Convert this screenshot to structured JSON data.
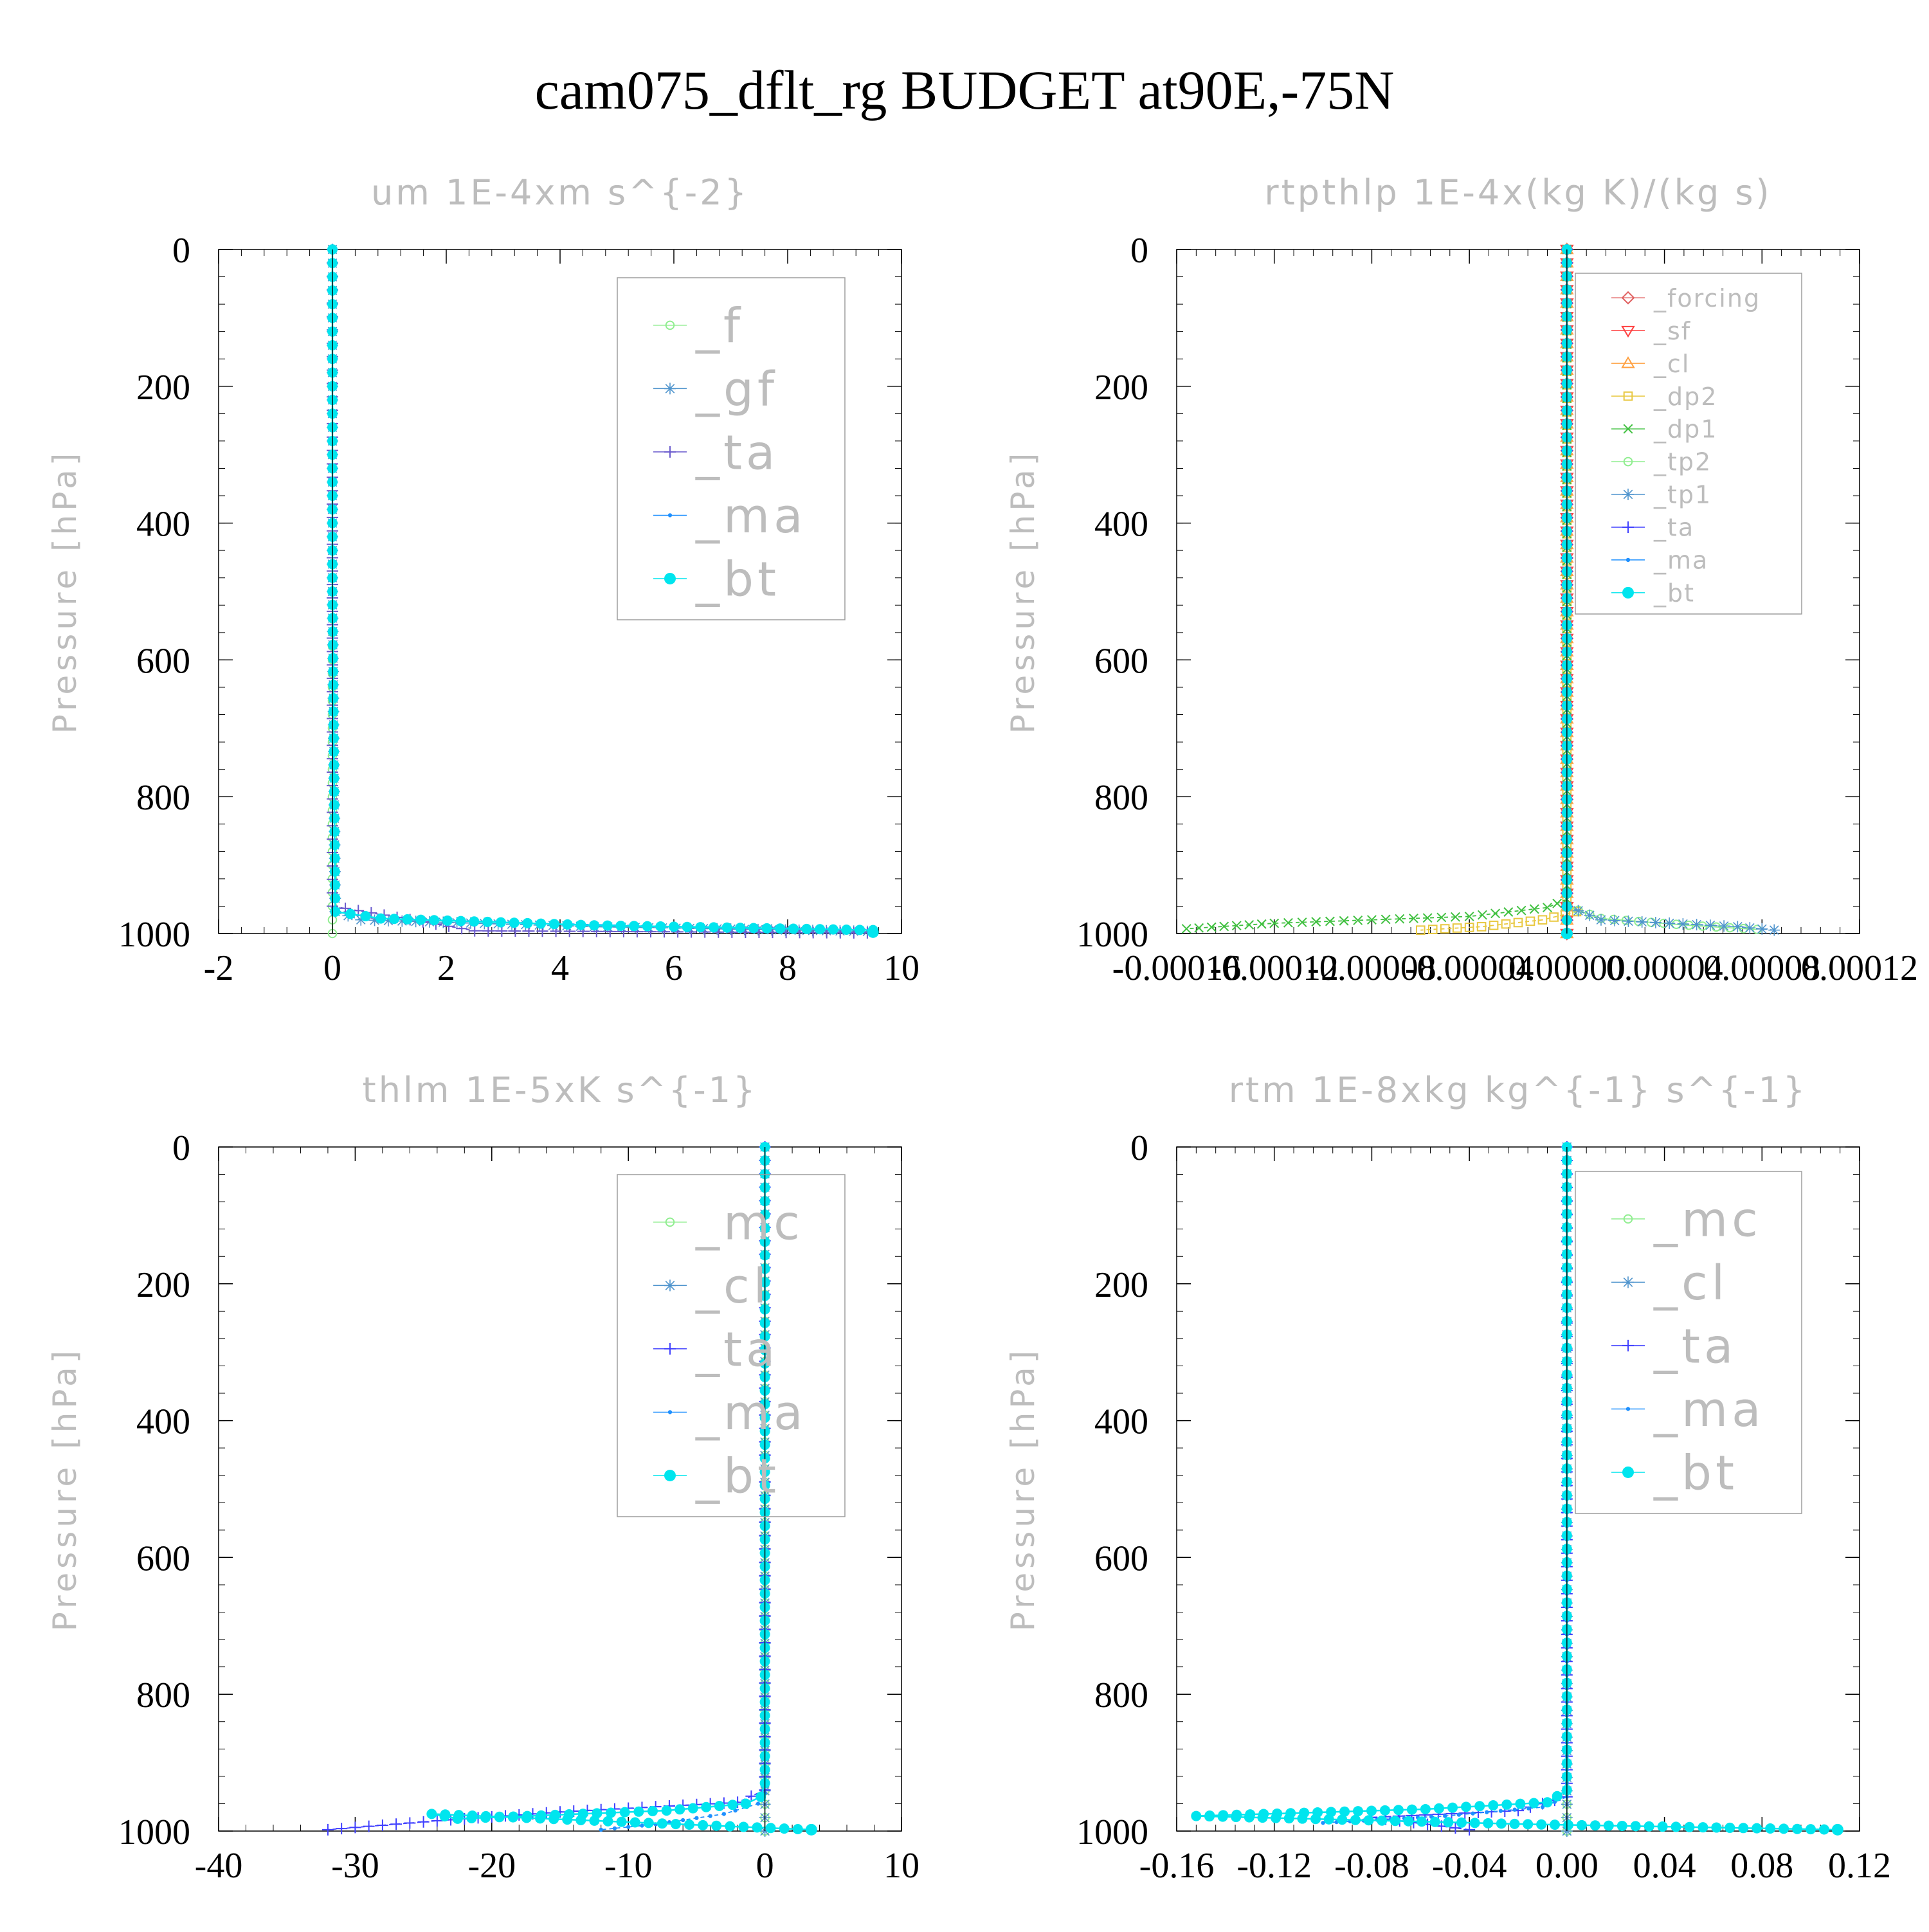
{
  "title": "cam075_dflt_rg  BUDGET at90E,-75N",
  "ylabel": "Pressure [hPa]",
  "colors": {
    "axis": "#000000",
    "subtitle": "#bdbdbd",
    "legend_text": "#bdbdbd",
    "frame": "#9e9e9e"
  },
  "chart_data": [
    {
      "type": "line",
      "title": "um   1E-4xm s^{-2}",
      "ylabel": "Pressure [hPa]",
      "xlim": [
        -2,
        10
      ],
      "ylim": [
        1000,
        0
      ],
      "y_inverted": true,
      "xticks": [
        "-2",
        "0",
        "2",
        "4",
        "6",
        "8",
        "10"
      ],
      "yticks": [
        "0",
        "200",
        "400",
        "600",
        "800",
        "1000"
      ],
      "legend_position": "top-right",
      "series": [
        {
          "name": "_f",
          "color": "#90ee90",
          "marker": "circle-open",
          "x": [
            0,
            0,
            0
          ],
          "y": [
            0,
            500,
            1000
          ]
        },
        {
          "name": "_gf",
          "color": "#4f94cd",
          "marker": "asterisk",
          "x": [
            0,
            0,
            0.05,
            0.5,
            4.6,
            9.4
          ],
          "y": [
            0,
            500,
            968,
            980,
            990,
            997
          ]
        },
        {
          "name": "_ta",
          "color": "#6a5acd",
          "marker": "plus",
          "x": [
            0,
            0,
            2.5,
            9.4
          ],
          "y": [
            0,
            960,
            996,
            999
          ]
        },
        {
          "name": "_ma",
          "color": "#1e90ff",
          "marker": "dot",
          "x": [
            0,
            0,
            0.05,
            0.8,
            4.6,
            9.5
          ],
          "y": [
            0,
            500,
            968,
            978,
            987,
            995
          ]
        },
        {
          "name": "_bt",
          "color": "#00e5ee",
          "marker": "filled-circle",
          "x": [
            0,
            0,
            0.05,
            0.85,
            4.6,
            9.5,
            9.5
          ],
          "y": [
            0,
            500,
            968,
            978,
            988,
            995,
            998
          ]
        }
      ]
    },
    {
      "type": "line",
      "title": "rtpthlp   1E-4x(kg K)/(kg s)",
      "ylabel": "Pressure [hPa]",
      "xlim": [
        -0.00016,
        0.00012
      ],
      "ylim": [
        1000,
        0
      ],
      "y_inverted": true,
      "xticks": [
        "-0.00016",
        "-0.00012",
        "-0.00008",
        "-0.00004",
        "0.00000",
        "0.00004",
        "0.00008",
        "0.00012"
      ],
      "yticks": [
        "0",
        "200",
        "400",
        "600",
        "800",
        "1000"
      ],
      "legend_position": "top-right",
      "series": [
        {
          "name": "_forcing",
          "color": "#e06060",
          "marker": "diamond-open",
          "x": [
            0,
            0
          ],
          "y": [
            0,
            1000
          ]
        },
        {
          "name": "_sf",
          "color": "#ff4040",
          "marker": "triangle-down",
          "x": [
            0,
            0
          ],
          "y": [
            0,
            1000
          ]
        },
        {
          "name": "_cl",
          "color": "#ffa040",
          "marker": "triangle-up",
          "x": [
            0,
            0
          ],
          "y": [
            0,
            1000
          ]
        },
        {
          "name": "_dp2",
          "color": "#e8c840",
          "marker": "square-open",
          "x": [
            0,
            0,
            4e-06,
            -1e-05,
            -3.5e-05,
            -6e-05
          ],
          "y": [
            0,
            950,
            968,
            980,
            990,
            995
          ]
        },
        {
          "name": "_dp1",
          "color": "#40c040",
          "marker": "x",
          "x": [
            0,
            0,
            -8e-06,
            -4e-05,
            -0.00012,
            -0.000156
          ],
          "y": [
            0,
            950,
            962,
            975,
            985,
            993
          ]
        },
        {
          "name": "_tp2",
          "color": "#90ee90",
          "marker": "circle-open",
          "x": [
            0,
            0,
            1.4e-05,
            5e-05,
            7.8e-05
          ],
          "y": [
            0,
            960,
            978,
            988,
            994
          ]
        },
        {
          "name": "_tp1",
          "color": "#4f94cd",
          "marker": "asterisk",
          "x": [
            0,
            0,
            1.4e-05,
            7e-05,
            8.5e-05
          ],
          "y": [
            0,
            960,
            980,
            990,
            995
          ]
        },
        {
          "name": "_ta",
          "color": "#4040ff",
          "marker": "plus",
          "x": [
            0,
            0
          ],
          "y": [
            0,
            1000
          ]
        },
        {
          "name": "_ma",
          "color": "#1e90ff",
          "marker": "dot",
          "x": [
            0,
            0
          ],
          "y": [
            0,
            1000
          ]
        },
        {
          "name": "_bt",
          "color": "#00e5ee",
          "marker": "filled-circle",
          "x": [
            0,
            0
          ],
          "y": [
            0,
            1000
          ]
        }
      ]
    },
    {
      "type": "line",
      "title": "thlm   1E-5xK s^{-1}",
      "ylabel": "Pressure [hPa]",
      "xlim": [
        -40,
        10
      ],
      "ylim": [
        1000,
        0
      ],
      "y_inverted": true,
      "xticks": [
        "-40",
        "-30",
        "-20",
        "-10",
        "0",
        "10"
      ],
      "yticks": [
        "0",
        "200",
        "400",
        "600",
        "800",
        "1000"
      ],
      "legend_position": "top-right",
      "series": [
        {
          "name": "_mc",
          "color": "#90ee90",
          "marker": "circle-open",
          "x": [
            0,
            0
          ],
          "y": [
            0,
            1000
          ]
        },
        {
          "name": "_cl",
          "color": "#4f94cd",
          "marker": "asterisk",
          "x": [
            0,
            0
          ],
          "y": [
            0,
            1000
          ]
        },
        {
          "name": "_ta",
          "color": "#4040ff",
          "marker": "plus",
          "x": [
            0,
            0,
            -2,
            -15,
            -24,
            -32
          ],
          "y": [
            0,
            940,
            958,
            972,
            985,
            998
          ]
        },
        {
          "name": "_ma",
          "color": "#1e90ff",
          "marker": "dot",
          "x": [
            0,
            0,
            -0.5,
            -3,
            -8,
            -12
          ],
          "y": [
            0,
            945,
            960,
            975,
            990,
            998
          ]
        },
        {
          "name": "_bt",
          "color": "#00e5ee",
          "marker": "filled-circle",
          "x": [
            0,
            0,
            -0.3,
            -1.4,
            -7.2,
            -22.5,
            -24.4,
            3.4
          ],
          "y": [
            0,
            930,
            950,
            960,
            970,
            982,
            975,
            998
          ]
        }
      ]
    },
    {
      "type": "line",
      "title": "rtm   1E-8xkg kg^{-1} s^{-1}",
      "ylabel": "Pressure [hPa]",
      "xlim": [
        -0.16,
        0.12
      ],
      "ylim": [
        1000,
        0
      ],
      "y_inverted": true,
      "xticks": [
        "-0.16",
        "-0.12",
        "-0.08",
        "-0.04",
        "0.00",
        "0.04",
        "0.08",
        "0.12"
      ],
      "yticks": [
        "0",
        "200",
        "400",
        "600",
        "800",
        "1000"
      ],
      "legend_position": "top-right",
      "series": [
        {
          "name": "_mc",
          "color": "#90ee90",
          "marker": "circle-open",
          "x": [
            0,
            0
          ],
          "y": [
            0,
            1000
          ]
        },
        {
          "name": "_cl",
          "color": "#4f94cd",
          "marker": "asterisk",
          "x": [
            0,
            0
          ],
          "y": [
            0,
            1000
          ]
        },
        {
          "name": "_ta",
          "color": "#4040ff",
          "marker": "plus",
          "x": [
            0,
            0,
            -0.02,
            -0.08,
            -0.04
          ],
          "y": [
            0,
            950,
            970,
            980,
            998
          ]
        },
        {
          "name": "_ma",
          "color": "#1e90ff",
          "marker": "dot",
          "x": [
            0,
            0,
            -0.01,
            -0.05,
            -0.1
          ],
          "y": [
            0,
            950,
            965,
            978,
            988
          ]
        },
        {
          "name": "_bt",
          "color": "#00e5ee",
          "marker": "filled-circle",
          "x": [
            0,
            0,
            -0.008,
            -0.058,
            -0.152,
            -0.016,
            0.111
          ],
          "y": [
            0,
            940,
            958,
            968,
            978,
            990,
            998
          ]
        }
      ]
    }
  ]
}
